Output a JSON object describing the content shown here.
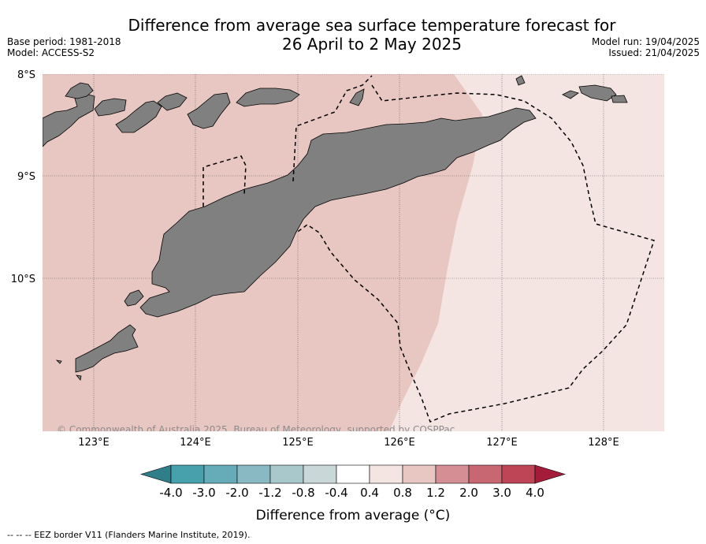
{
  "header": {
    "title_line1": "Difference from average sea surface temperature forecast for",
    "title_line2": "26 April to 2 May 2025",
    "base_period": "Base period: 1981-2018",
    "model": "Model: ACCESS-S2",
    "model_run": "Model run: 19/04/2025",
    "issued": "Issued: 21/04/2025"
  },
  "map": {
    "lat_labels": [
      "8°S",
      "9°S",
      "10°S"
    ],
    "lon_labels": [
      "123°E",
      "124°E",
      "125°E",
      "126°E",
      "127°E",
      "128°E"
    ],
    "copyright": "© Commonwealth of Australia 2025, Bureau of Meteorology, supported by COSPPac",
    "fill_colors": {
      "warm_anomaly": "#e8c6c1",
      "slight_anomaly": "#f4e5e2",
      "land": "#808080"
    }
  },
  "colorbar": {
    "title": "Difference from average (°C)",
    "tick_labels": [
      "-4.0",
      "-3.0",
      "-2.0",
      "-1.2",
      "-0.8",
      "-0.4",
      "0.4",
      "0.8",
      "1.2",
      "2.0",
      "3.0",
      "4.0"
    ],
    "low_extend_color": "#2f7e8a",
    "colors": [
      "#47a1ad",
      "#66acb8",
      "#89b9c3",
      "#a9c8cc",
      "#cad7d8",
      "#ffffff",
      "#f4e5e2",
      "#e8c6c1",
      "#d58f94",
      "#c86672",
      "#be4555"
    ],
    "high_extend_color": "#a51b3a"
  },
  "legend": {
    "eez_label": "-- -- -- EEZ border V11 (Flanders Marine Institute, 2019)."
  }
}
